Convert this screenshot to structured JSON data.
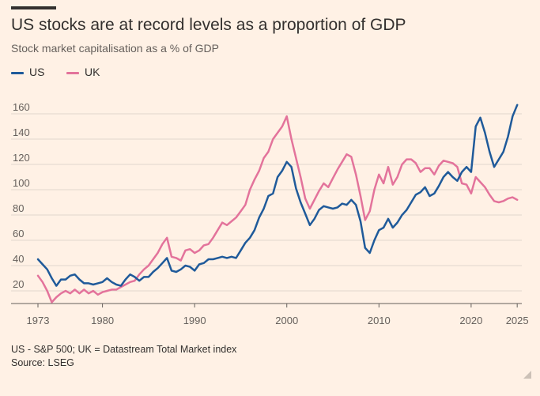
{
  "title": "US stocks are at record levels as a proportion of GDP",
  "subtitle": "Stock market capitalisation as a % of GDP",
  "footnote": "US - S&P 500; UK = Datastream Total Market index",
  "source": "Source: LSEG",
  "colors": {
    "background": "#FFF1E5",
    "US": "#1F5A9A",
    "UK": "#E3739B",
    "grid": "#E0D6CD",
    "text": "#33302E"
  },
  "chart_data": {
    "type": "line",
    "title": "US stocks are at record levels as a proportion of GDP",
    "subtitle": "Stock market capitalisation as a % of GDP",
    "xlabel": "",
    "ylabel": "",
    "xlim": [
      1973,
      2025.5
    ],
    "ylim": [
      10,
      175
    ],
    "x_ticks": [
      1973,
      1980,
      1990,
      2000,
      2010,
      2020,
      2025
    ],
    "y_ticks": [
      20,
      40,
      60,
      80,
      100,
      120,
      140,
      160
    ],
    "grid": true,
    "legend": "top-left",
    "series": [
      {
        "name": "US",
        "color": "#1F5A9A",
        "x": [
          1973,
          1973.5,
          1974,
          1974.5,
          1975,
          1975.5,
          1976,
          1976.5,
          1977,
          1977.5,
          1978,
          1978.5,
          1979,
          1979.5,
          1980,
          1980.5,
          1981,
          1981.5,
          1982,
          1982.5,
          1983,
          1983.5,
          1984,
          1984.5,
          1985,
          1985.5,
          1986,
          1986.5,
          1987,
          1987.5,
          1988,
          1988.5,
          1989,
          1989.5,
          1990,
          1990.5,
          1991,
          1991.5,
          1992,
          1992.5,
          1993,
          1993.5,
          1994,
          1994.5,
          1995,
          1995.5,
          1996,
          1996.5,
          1997,
          1997.5,
          1998,
          1998.5,
          1999,
          1999.5,
          2000,
          2000.5,
          2001,
          2001.5,
          2002,
          2002.5,
          2003,
          2003.5,
          2004,
          2004.5,
          2005,
          2005.5,
          2006,
          2006.5,
          2007,
          2007.5,
          2008,
          2008.5,
          2009,
          2009.5,
          2010,
          2010.5,
          2011,
          2011.5,
          2012,
          2012.5,
          2013,
          2013.5,
          2014,
          2014.5,
          2015,
          2015.5,
          2016,
          2016.5,
          2017,
          2017.5,
          2018,
          2018.5,
          2019,
          2019.5,
          2020,
          2020.5,
          2021,
          2021.5,
          2022,
          2022.5,
          2023,
          2023.5,
          2024,
          2024.5,
          2025
        ],
        "values": [
          45,
          41,
          37,
          30,
          24,
          29,
          29,
          32,
          33,
          29,
          26,
          26,
          25,
          26,
          27,
          30,
          27,
          25,
          24,
          29,
          33,
          31,
          28,
          31,
          31,
          35,
          38,
          42,
          46,
          36,
          35,
          37,
          40,
          39,
          36,
          41,
          42,
          45,
          45,
          46,
          47,
          46,
          47,
          46,
          52,
          58,
          62,
          68,
          78,
          85,
          95,
          97,
          110,
          115,
          122,
          118,
          101,
          90,
          81,
          72,
          77,
          84,
          87,
          86,
          85,
          86,
          89,
          88,
          92,
          88,
          75,
          54,
          50,
          60,
          68,
          70,
          77,
          70,
          74,
          80,
          84,
          90,
          96,
          98,
          102,
          95,
          97,
          103,
          110,
          114,
          110,
          107,
          114,
          118,
          114,
          150,
          157,
          145,
          130,
          118,
          124,
          130,
          142,
          158,
          167
        ]
      },
      {
        "name": "UK",
        "color": "#E3739B",
        "x": [
          1973,
          1973.5,
          1974,
          1974.5,
          1975,
          1975.5,
          1976,
          1976.5,
          1977,
          1977.5,
          1978,
          1978.5,
          1979,
          1979.5,
          1980,
          1980.5,
          1981,
          1981.5,
          1982,
          1982.5,
          1983,
          1983.5,
          1984,
          1984.5,
          1985,
          1985.5,
          1986,
          1986.5,
          1987,
          1987.5,
          1988,
          1988.5,
          1989,
          1989.5,
          1990,
          1990.5,
          1991,
          1991.5,
          1992,
          1992.5,
          1993,
          1993.5,
          1994,
          1994.5,
          1995,
          1995.5,
          1996,
          1996.5,
          1997,
          1997.5,
          1998,
          1998.5,
          1999,
          1999.5,
          2000,
          2000.5,
          2001,
          2001.5,
          2002,
          2002.5,
          2003,
          2003.5,
          2004,
          2004.5,
          2005,
          2005.5,
          2006,
          2006.5,
          2007,
          2007.5,
          2008,
          2008.5,
          2009,
          2009.5,
          2010,
          2010.5,
          2011,
          2011.5,
          2012,
          2012.5,
          2013,
          2013.5,
          2014,
          2014.5,
          2015,
          2015.5,
          2016,
          2016.5,
          2017,
          2017.5,
          2018,
          2018.5,
          2019,
          2019.5,
          2020,
          2020.5,
          2021,
          2021.5,
          2022,
          2022.5,
          2023,
          2023.5,
          2024,
          2024.5,
          2025
        ],
        "values": [
          32,
          27,
          20,
          11,
          15,
          18,
          20,
          18,
          21,
          18,
          21,
          18,
          20,
          17,
          19,
          20,
          21,
          21,
          23,
          25,
          27,
          28,
          33,
          37,
          40,
          45,
          50,
          57,
          62,
          47,
          46,
          44,
          52,
          53,
          50,
          52,
          56,
          57,
          62,
          68,
          74,
          72,
          75,
          78,
          83,
          88,
          100,
          108,
          115,
          125,
          130,
          140,
          145,
          150,
          158,
          140,
          125,
          110,
          93,
          85,
          92,
          99,
          105,
          102,
          109,
          116,
          122,
          128,
          126,
          112,
          95,
          76,
          83,
          100,
          112,
          105,
          118,
          104,
          110,
          120,
          124,
          124,
          121,
          114,
          117,
          117,
          112,
          119,
          123,
          122,
          121,
          118,
          105,
          104,
          97,
          110,
          106,
          102,
          96,
          91,
          90,
          91,
          93,
          94,
          92
        ]
      }
    ]
  }
}
